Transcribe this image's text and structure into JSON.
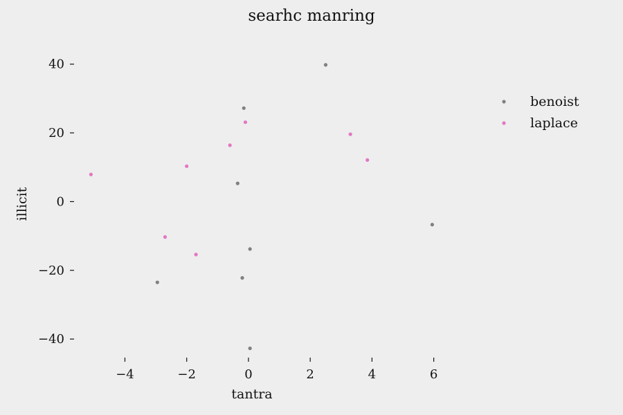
{
  "chart_data": {
    "type": "scatter",
    "title": "searhc manring",
    "xlabel": "tantra",
    "ylabel": "illicit",
    "xlim": [
      -5.4,
      6.3
    ],
    "ylim": [
      -46,
      48
    ],
    "xticks": [
      -4,
      -2,
      0,
      2,
      4,
      6
    ],
    "yticks": [
      -40,
      -20,
      0,
      20,
      40
    ],
    "xtick_labels": [
      "−4",
      "−2",
      "0",
      "2",
      "4",
      "6"
    ],
    "ytick_labels": [
      "−40",
      "−20",
      "0",
      "20",
      "40"
    ],
    "grid": false,
    "legend_position": "upper-right",
    "background": "#eeeeee",
    "series": [
      {
        "name": "benoist",
        "color": "#808080",
        "points": [
          {
            "x": 2.5,
            "y": 39.8
          },
          {
            "x": -0.15,
            "y": 27.2
          },
          {
            "x": -0.35,
            "y": 5.3
          },
          {
            "x": 5.95,
            "y": -6.7
          },
          {
            "x": 0.05,
            "y": -13.8
          },
          {
            "x": -0.2,
            "y": -22.2
          },
          {
            "x": -2.95,
            "y": -23.5
          },
          {
            "x": 0.05,
            "y": -42.7
          }
        ]
      },
      {
        "name": "laplace",
        "color": "#e377c2",
        "points": [
          {
            "x": -0.1,
            "y": 23.1
          },
          {
            "x": 3.3,
            "y": 19.6
          },
          {
            "x": -0.6,
            "y": 16.4
          },
          {
            "x": 3.85,
            "y": 12.1
          },
          {
            "x": -2.0,
            "y": 10.3
          },
          {
            "x": -5.1,
            "y": 7.9
          },
          {
            "x": -2.7,
            "y": -10.3
          },
          {
            "x": -1.7,
            "y": -15.4
          }
        ]
      }
    ]
  }
}
